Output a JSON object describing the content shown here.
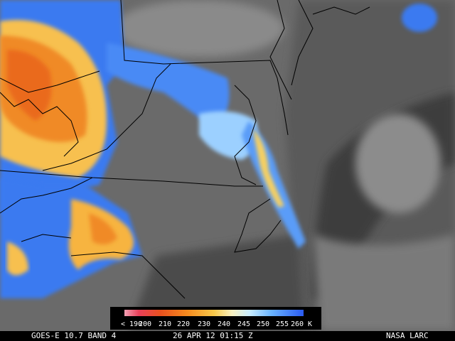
{
  "colorbar": {
    "labels": [
      "< 190",
      "200",
      "210",
      "220",
      "230",
      "240",
      "245",
      "250",
      "255",
      "260 K"
    ]
  },
  "footer": {
    "satellite": "GOES-E 10.7 BAND 4",
    "timestamp": "26 APR 12 01:15 Z",
    "source": "NASA LARC"
  }
}
